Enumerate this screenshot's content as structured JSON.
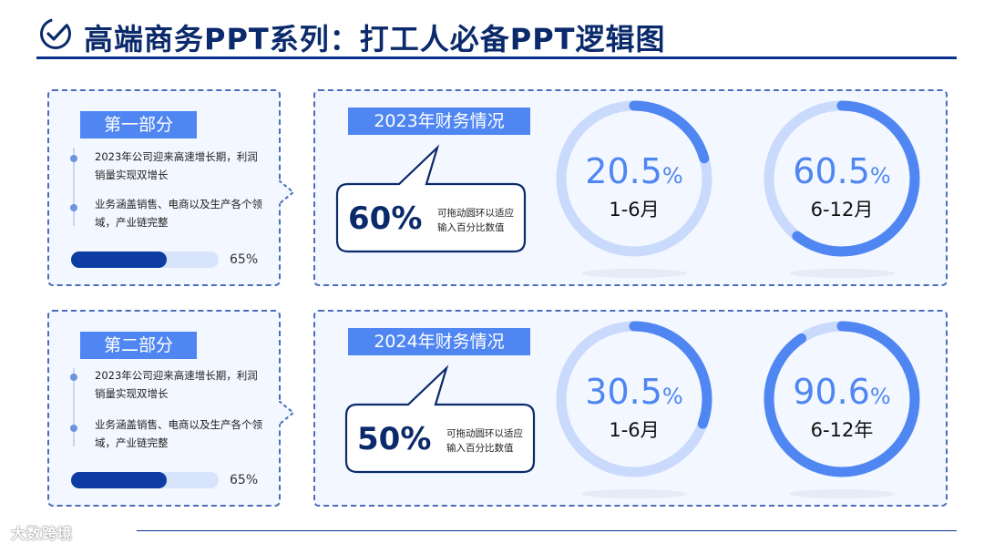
{
  "header": {
    "title": "高端商务PPT系列：打工人必备PPT逻辑图",
    "icon": "check-circle-icon"
  },
  "colors": {
    "accent": "#4f86f2",
    "dark_navy": "#0b2a6b",
    "ring_track": "#c9dafd",
    "progress_fill": "#0d3da3"
  },
  "sections": [
    {
      "tag": "第一部分",
      "bullets": [
        "2023年公司迎来高速增长期，利润销量实现双增长",
        "业务涵盖销售、电商以及生产各个领域，产业链完整"
      ],
      "progress": 0.65,
      "progress_label": "65%",
      "year_label": "2023年财务情况",
      "bubble_pct": "60%",
      "bubble_note": "可拖动圆环以适应输入百分比数值",
      "donuts": [
        {
          "value": "20.5",
          "unit": "%",
          "label": "1-6月",
          "percent": 20.5
        },
        {
          "value": "60.5",
          "unit": "%",
          "label": "6-12月",
          "percent": 60.5
        }
      ]
    },
    {
      "tag": "第二部分",
      "bullets": [
        "2023年公司迎来高速增长期，利润销量实现双增长",
        "业务涵盖销售、电商以及生产各个领域，产业链完整"
      ],
      "progress": 0.65,
      "progress_label": "65%",
      "year_label": "2024年财务情况",
      "bubble_pct": "50%",
      "bubble_note": "可拖动圆环以适应输入百分比数值",
      "donuts": [
        {
          "value": "30.5",
          "unit": "%",
          "label": "1-6月",
          "percent": 30.5
        },
        {
          "value": "90.6",
          "unit": "%",
          "label": "6-12年",
          "percent": 90.6
        }
      ]
    }
  ],
  "watermark": "大数跨境"
}
